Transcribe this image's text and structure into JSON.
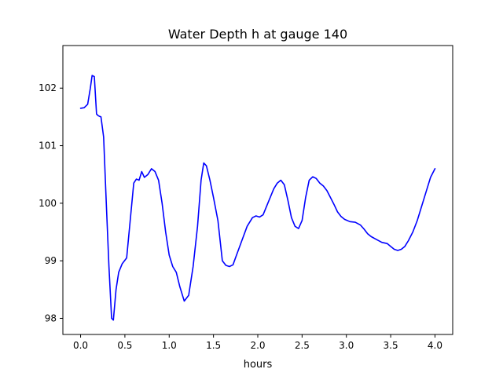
{
  "chart_data": {
    "type": "line",
    "title": "Water Depth h at gauge 140",
    "xlabel": "hours",
    "ylabel": "",
    "xlim": [
      -0.2,
      4.2
    ],
    "ylim": [
      97.72,
      102.74
    ],
    "xticks": [
      0.0,
      0.5,
      1.0,
      1.5,
      2.0,
      2.5,
      3.0,
      3.5,
      4.0
    ],
    "yticks": [
      98,
      99,
      100,
      101,
      102
    ],
    "xtick_labels": [
      "0.0",
      "0.5",
      "1.0",
      "1.5",
      "2.0",
      "2.5",
      "3.0",
      "3.5",
      "4.0"
    ],
    "ytick_labels": [
      "98",
      "99",
      "100",
      "101",
      "102"
    ],
    "grid": false,
    "legend": "none",
    "series": [
      {
        "color": "#0000ff",
        "x": [
          0.0,
          0.04,
          0.08,
          0.11,
          0.13,
          0.155,
          0.18,
          0.2,
          0.23,
          0.26,
          0.29,
          0.32,
          0.35,
          0.37,
          0.4,
          0.43,
          0.47,
          0.52,
          0.56,
          0.6,
          0.63,
          0.66,
          0.69,
          0.72,
          0.76,
          0.8,
          0.84,
          0.88,
          0.92,
          0.96,
          1.0,
          1.04,
          1.08,
          1.12,
          1.17,
          1.22,
          1.27,
          1.32,
          1.36,
          1.39,
          1.42,
          1.46,
          1.5,
          1.55,
          1.6,
          1.64,
          1.68,
          1.72,
          1.76,
          1.82,
          1.88,
          1.94,
          1.98,
          2.02,
          2.06,
          2.1,
          2.14,
          2.18,
          2.22,
          2.26,
          2.3,
          2.34,
          2.38,
          2.42,
          2.46,
          2.5,
          2.54,
          2.58,
          2.62,
          2.66,
          2.7,
          2.74,
          2.78,
          2.82,
          2.86,
          2.9,
          2.94,
          2.98,
          3.04,
          3.1,
          3.16,
          3.2,
          3.24,
          3.28,
          3.34,
          3.4,
          3.46,
          3.5,
          3.54,
          3.58,
          3.62,
          3.66,
          3.7,
          3.75,
          3.8,
          3.85,
          3.9,
          3.95,
          4.0
        ],
        "y": [
          101.65,
          101.66,
          101.72,
          102.0,
          102.22,
          102.2,
          101.55,
          101.52,
          101.5,
          101.15,
          100.0,
          98.9,
          98.0,
          97.97,
          98.5,
          98.8,
          98.95,
          99.05,
          99.7,
          100.35,
          100.42,
          100.4,
          100.55,
          100.45,
          100.5,
          100.6,
          100.55,
          100.4,
          100.0,
          99.5,
          99.1,
          98.9,
          98.8,
          98.55,
          98.3,
          98.4,
          98.9,
          99.6,
          100.4,
          100.7,
          100.65,
          100.4,
          100.1,
          99.7,
          99.0,
          98.92,
          98.9,
          98.93,
          99.1,
          99.35,
          99.6,
          99.75,
          99.78,
          99.76,
          99.8,
          99.95,
          100.1,
          100.25,
          100.35,
          100.4,
          100.32,
          100.05,
          99.75,
          99.6,
          99.56,
          99.7,
          100.1,
          100.4,
          100.46,
          100.43,
          100.35,
          100.3,
          100.22,
          100.1,
          99.98,
          99.85,
          99.77,
          99.72,
          99.68,
          99.67,
          99.62,
          99.55,
          99.47,
          99.42,
          99.37,
          99.32,
          99.3,
          99.25,
          99.2,
          99.18,
          99.2,
          99.25,
          99.35,
          99.5,
          99.7,
          99.95,
          100.2,
          100.45,
          100.6
        ]
      }
    ]
  }
}
